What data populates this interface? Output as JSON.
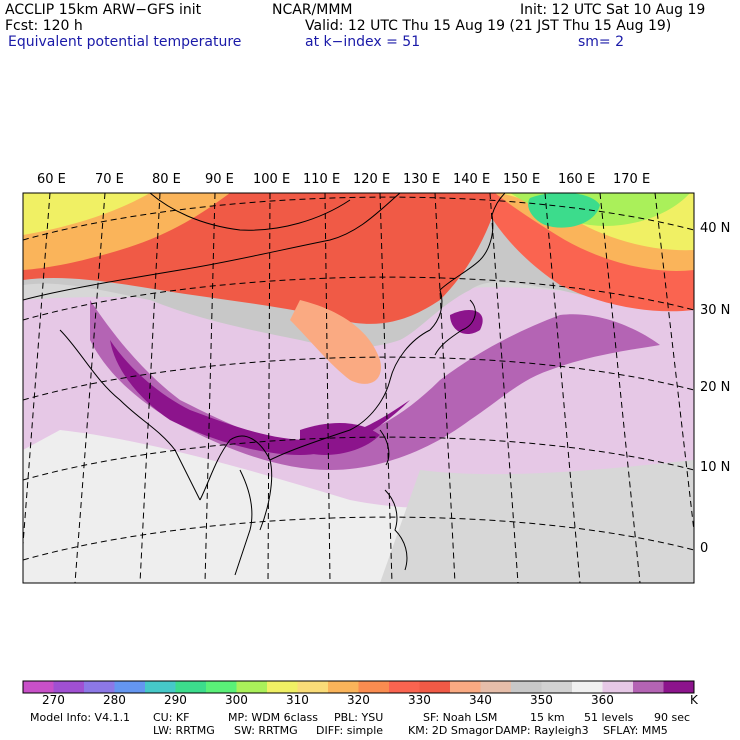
{
  "header": {
    "model": "ACCLIP 15km ARW−GFS init",
    "fcst": "Fcst:  120 h",
    "variable": "Equivalent potential temperature",
    "center": "NCAR/MMM",
    "init": "Init: 12 UTC Sat 10 Aug 19",
    "valid": "Valid: 12 UTC Thu 15 Aug 19 (21 JST Thu 15 Aug 19)",
    "level": "at k−index =  51",
    "smooth": "sm= 2"
  },
  "map": {
    "lon_labels": [
      "60 E",
      "70 E",
      "80 E",
      "90 E",
      "100 E",
      "110 E",
      "120 E",
      "130 E",
      "140 E",
      "150 E",
      "160 E",
      "170 E"
    ],
    "lat_labels": [
      "40 N",
      "30 N",
      "20 N",
      "10 N",
      "0"
    ]
  },
  "colorbar": {
    "colors": [
      "#c850c8",
      "#a050d2",
      "#8c78e6",
      "#6496f0",
      "#46c8c8",
      "#3cdc8c",
      "#5af078",
      "#aaf05a",
      "#f0f064",
      "#fadc78",
      "#fab45a",
      "#fa8c50",
      "#fa6450",
      "#f05a46",
      "#faaa82",
      "#e6beaa",
      "#c8c8c8",
      "#d2d2d2",
      "#f0f0f0",
      "#e6c8e6",
      "#b464b4",
      "#8c148c"
    ],
    "labels": [
      "270",
      "280",
      "290",
      "300",
      "310",
      "320",
      "330",
      "340",
      "350",
      "360"
    ],
    "unit": "K"
  },
  "footer": {
    "line1": [
      "Model Info: V4.1.1",
      "CU: KF",
      "MP: WDM 6class",
      "PBL: YSU",
      "SF: Noah LSM",
      "15 km",
      "51 levels",
      "90 sec"
    ],
    "line2": [
      "LW: RRTMG",
      "SW: RRTMG",
      "DIFF: simple",
      "KM: 2D Smagor",
      "DAMP: Rayleigh3",
      "SFLAY: MM5"
    ]
  }
}
